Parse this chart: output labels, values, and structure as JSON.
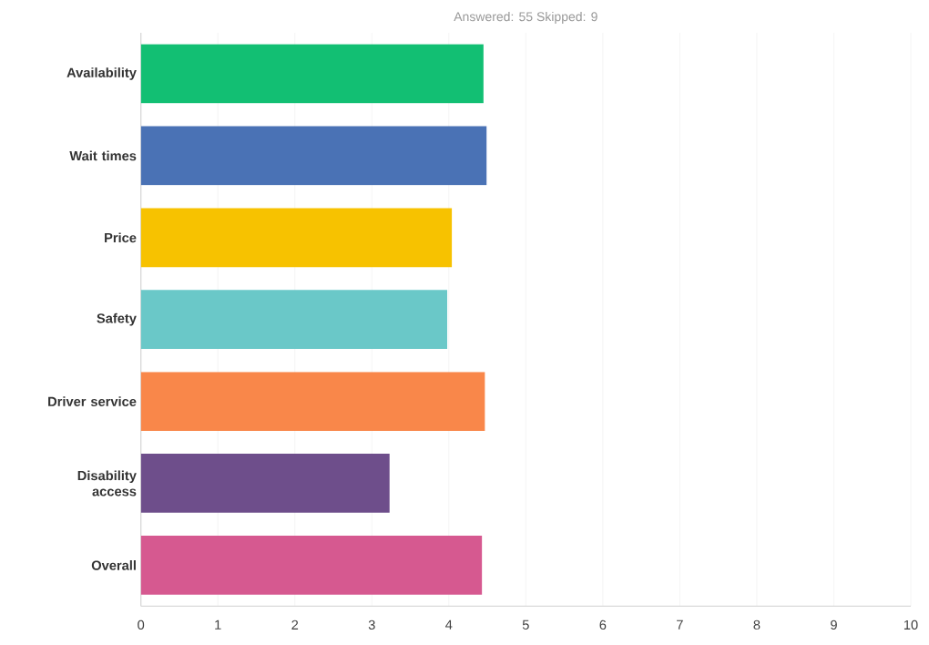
{
  "chart_data": {
    "type": "bar",
    "orientation": "horizontal",
    "title": "Answered: 55 Skipped: 9",
    "categories": [
      "Availability",
      "Wait times",
      "Price",
      "Safety",
      "Driver service",
      "Disability access",
      "Overall"
    ],
    "values": [
      4.45,
      4.49,
      4.04,
      3.98,
      4.47,
      3.23,
      4.43
    ],
    "colors": [
      "#12bf73",
      "#4a72b5",
      "#f7c200",
      "#6ac8c8",
      "#f9874a",
      "#6e4e8b",
      "#d65990"
    ],
    "xlim": [
      0,
      10
    ],
    "xticks": [
      0,
      1,
      2,
      3,
      4,
      5,
      6,
      7,
      8,
      9,
      10
    ],
    "grid": "x"
  }
}
